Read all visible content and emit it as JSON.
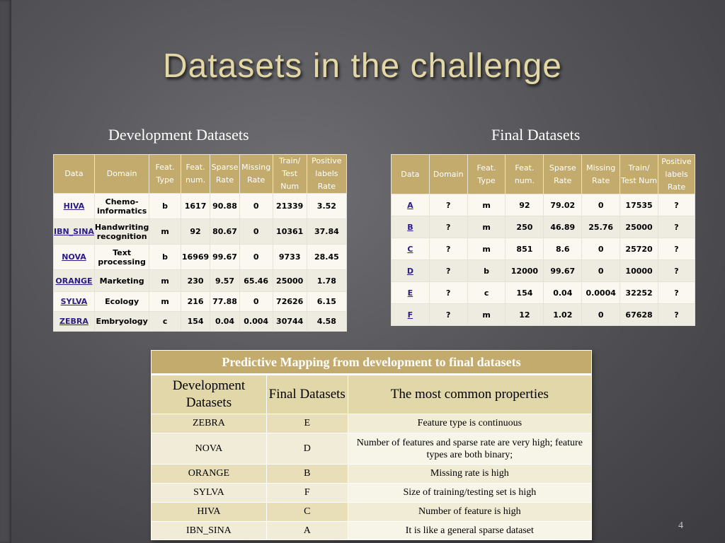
{
  "slide": {
    "title": "Datasets in the challenge",
    "dev_heading": "Development Datasets",
    "final_heading": "Final Datasets",
    "page_number": "4"
  },
  "dev_table": {
    "headers": [
      "Data",
      "Domain",
      "Feat. Type",
      "Feat. num.",
      "Sparse Rate",
      "Missing Rate",
      "Train/ Test Num",
      "Positive labels Rate"
    ],
    "rows": [
      [
        "HIVA",
        "Chemo-informatics",
        "b",
        "1617",
        "90.88",
        "0",
        "21339",
        "3.52"
      ],
      [
        "IBN_SINA",
        "Handwriting recognition",
        "m",
        "92",
        "80.67",
        "0",
        "10361",
        "37.84"
      ],
      [
        "NOVA",
        "Text processing",
        "b",
        "16969",
        "99.67",
        "0",
        "9733",
        "28.45"
      ],
      [
        "ORANGE",
        "Marketing",
        "m",
        "230",
        "9.57",
        "65.46",
        "25000",
        "1.78"
      ],
      [
        "SYLVA",
        "Ecology",
        "m",
        "216",
        "77.88",
        "0",
        "72626",
        "6.15"
      ],
      [
        "ZEBRA",
        "Embryology",
        "c",
        "154",
        "0.04",
        "0.004",
        "30744",
        "4.58"
      ]
    ]
  },
  "final_table": {
    "headers": [
      "Data",
      "Domain",
      "Feat. Type",
      "Feat. num.",
      "Sparse Rate",
      "Missing Rate",
      "Train/ Test Num",
      "Positive labels Rate"
    ],
    "rows": [
      [
        "A",
        "?",
        "m",
        "92",
        "79.02",
        "0",
        "17535",
        "?"
      ],
      [
        "B",
        "?",
        "m",
        "250",
        "46.89",
        "25.76",
        "25000",
        "?"
      ],
      [
        "C",
        "?",
        "m",
        "851",
        "8.6",
        "0",
        "25720",
        "?"
      ],
      [
        "D",
        "?",
        "b",
        "12000",
        "99.67",
        "0",
        "10000",
        "?"
      ],
      [
        "E",
        "?",
        "c",
        "154",
        "0.04",
        "0.0004",
        "32252",
        "?"
      ],
      [
        "F",
        "?",
        "m",
        "12",
        "1.02",
        "0",
        "67628",
        "?"
      ]
    ]
  },
  "mapping_table": {
    "caption": "Predictive Mapping from development to final datasets",
    "headers": [
      "Development Datasets",
      "Final Datasets",
      "The most common properties"
    ],
    "rows": [
      [
        "ZEBRA",
        "E",
        "Feature type is continuous"
      ],
      [
        "NOVA",
        "D",
        "Number of features and sparse rate are very high; feature types are both binary;"
      ],
      [
        "ORANGE",
        "B",
        "Missing rate is high"
      ],
      [
        "SYLVA",
        "F",
        "Size of training/testing set is high"
      ],
      [
        "HIVA",
        "C",
        "Number of feature is high"
      ],
      [
        "IBN_SINA",
        "A",
        "It is like a general sparse dataset"
      ]
    ]
  }
}
